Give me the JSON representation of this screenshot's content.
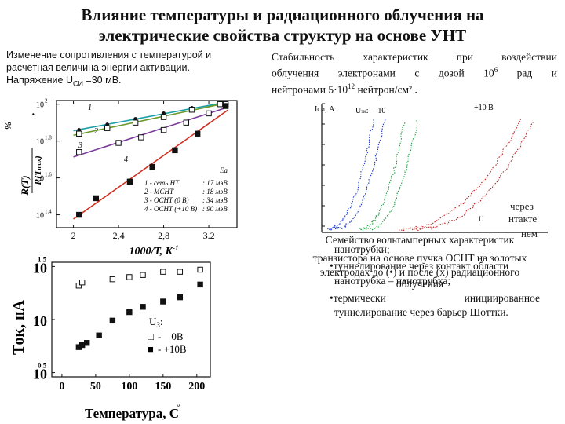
{
  "title_line1": "Влияние температуры и радиационного облучения на",
  "title_line2": "электрические свойства структур на основе УНТ",
  "left_desc": {
    "line1": "Изменение сопротивления с температурой и",
    "line2": "расчётная величина энергии активации.",
    "line3": "Напряжение U",
    "line3_sub": "СИ",
    "line3_end": " =30 мВ."
  },
  "right_desc": {
    "line1": "Стабильность характеристик при воздействии",
    "line2": "облучения электронами с дозой 10",
    "line2_sup": "6",
    "line2_end": " рад и",
    "line3": "нейтронами 5·10",
    "line3_sup": "12",
    "line3_end": " нейтрон/см² ."
  },
  "caption": {
    "line1": "Семейство вольтамперных характеристик",
    "line2": "транзистора на основе пучка ОСНТ на золотых",
    "line3": "электродах до (•) и после (x) радиационного",
    "line4": "облучения"
  },
  "bullets": {
    "b1a": "нанотрубки;",
    "b1": "•туннелирование через контакт области",
    "b1b": "нанотрубка – нанотрубка;",
    "b2": "•термически инициированное",
    "b3": "туннелирование через барьер Шоттки."
  },
  "overlap_fragments": {
    "a": "через",
    "b": "U",
    "c": "нтакте",
    "d": "нем"
  },
  "chart_data": [
    {
      "type": "scatter",
      "xlabel": "1000/T, K",
      "xlabel_sup": "-1",
      "ylabel": "R(T) / R(T_max), %",
      "ylabel_top": "R(T)",
      "ylabel_bottom": "R(T",
      "ylabel_bottom_sub": "max",
      "ylabel_end": ")",
      "ylabel_pct": "%",
      "xlim": [
        1.85,
        3.45
      ],
      "y_log": true,
      "ylim_log10": [
        1.33,
        2.02
      ],
      "xticks": [
        "2",
        "2,4",
        "2,8",
        "3.2"
      ],
      "xtick_values": [
        2.0,
        2.4,
        2.8,
        3.2
      ],
      "yticks": [
        "10",
        "10",
        "10",
        "10"
      ],
      "ytick_sups": [
        "2",
        "1.8",
        "1.6",
        "1.4"
      ],
      "ytick_values": [
        2.0,
        1.8,
        1.6,
        1.4
      ],
      "ea_header": "Ea",
      "legend": [
        {
          "text": "1 - сеть НТ",
          "value": ": 17 мэВ"
        },
        {
          "text": "2 - МСНТ",
          "value": ": 18 мэВ"
        },
        {
          "text": "3 - ОСНТ (0 В)",
          "value": ": 34 мэВ"
        },
        {
          "text": "4 - ОСНТ (+10 В)",
          "value": ": 90 мэВ"
        }
      ],
      "curve_labels": [
        "1",
        "2",
        "3",
        "4"
      ],
      "series": [
        {
          "name": "1",
          "color": "#1aa0a8",
          "marker": "dot",
          "x": [
            2.05,
            2.3,
            2.55,
            2.8,
            3.05,
            3.3
          ],
          "y_log10": [
            1.86,
            1.89,
            1.92,
            1.95,
            1.98,
            2.0
          ]
        },
        {
          "name": "2",
          "color": "#6a9a2a",
          "marker": "open-square",
          "x": [
            2.05,
            2.3,
            2.55,
            2.8,
            3.05,
            3.3
          ],
          "y_log10": [
            1.84,
            1.87,
            1.9,
            1.93,
            1.97,
            2.0
          ]
        },
        {
          "name": "3",
          "color": "#7a3a9a",
          "marker": "open-square",
          "x": [
            2.05,
            2.4,
            2.6,
            2.8,
            3.0,
            3.2,
            3.35
          ],
          "y_log10": [
            1.74,
            1.79,
            1.82,
            1.86,
            1.9,
            1.95,
            2.0
          ]
        },
        {
          "name": "4",
          "color": "#d03020",
          "marker": "filled-square",
          "x": [
            2.05,
            2.2,
            2.5,
            2.7,
            2.9,
            3.1,
            3.35
          ],
          "y_log10": [
            1.4,
            1.49,
            1.58,
            1.66,
            1.75,
            1.84,
            1.99
          ]
        }
      ]
    },
    {
      "type": "scatter",
      "xlabel": "Температура, C",
      "xlabel_deg": "°",
      "ylabel": "Ток, нА",
      "xlim": [
        -15,
        220
      ],
      "y_log": true,
      "ylim_log10": [
        0.46,
        1.54
      ],
      "xticks": [
        "0",
        "50",
        "100",
        "150",
        "200"
      ],
      "xtick_values": [
        0,
        50,
        100,
        150,
        200
      ],
      "yticks": [
        "10",
        "10",
        "10"
      ],
      "ytick_sups": [
        "1.5",
        "",
        "0.5"
      ],
      "ytick_values": [
        1.5,
        1.0,
        0.5
      ],
      "legend_title": "U",
      "legend_title_sub": "З",
      "legend_title_end": ":",
      "legend": [
        {
          "marker": "□",
          "text": "-    0В"
        },
        {
          "marker": "■",
          "text": "- +10В"
        }
      ],
      "series": [
        {
          "name": "0В",
          "marker": "open-square",
          "x": [
            25,
            30,
            75,
            100,
            120,
            150,
            175,
            205
          ],
          "y_log10": [
            1.32,
            1.35,
            1.38,
            1.4,
            1.42,
            1.45,
            1.45,
            1.47
          ]
        },
        {
          "name": "+10В",
          "marker": "filled-square",
          "x": [
            25,
            30,
            37,
            55,
            75,
            100,
            120,
            150,
            175,
            205
          ],
          "y_log10": [
            0.74,
            0.76,
            0.78,
            0.85,
            0.99,
            1.07,
            1.12,
            1.17,
            1.21,
            1.33
          ]
        }
      ]
    },
    {
      "type": "scatter",
      "tick_top_left": "-10",
      "tick_top_right": "+10 В",
      "ylabel_top": "I",
      "ylabel_top_sub": "СИ",
      "ylabel_top_end": ", A",
      "xlabel_top": "U",
      "xlabel_top_sub": "зи",
      "xlabel_top_end": ":",
      "series": [
        {
          "name": "blue",
          "color": "#1a3ad0"
        },
        {
          "name": "green",
          "color": "#1ea040"
        },
        {
          "name": "red",
          "color": "#c02020"
        }
      ]
    }
  ]
}
